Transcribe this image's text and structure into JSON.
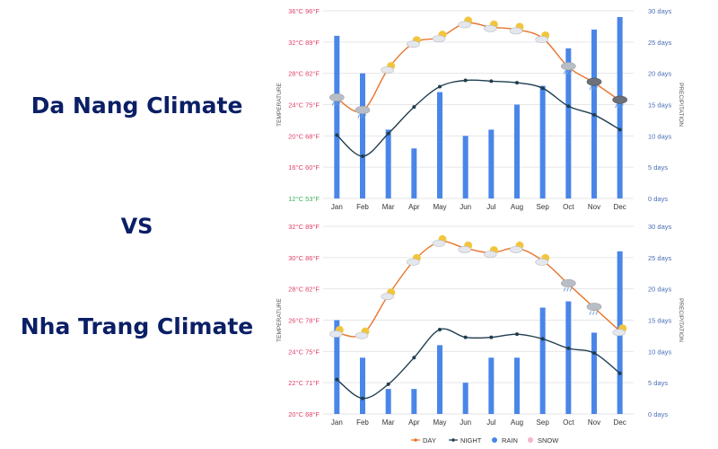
{
  "titles": {
    "left_top": "Da Nang Climate",
    "vs": "VS",
    "left_bottom": "Nha Trang Climate"
  },
  "chart_data": [
    {
      "type": "bar+line",
      "name": "Da Nang Climate",
      "categories": [
        "Jan",
        "Feb",
        "Mar",
        "Apr",
        "May",
        "Jun",
        "Jul",
        "Aug",
        "Sep",
        "Oct",
        "Nov",
        "Dec"
      ],
      "ylabel": "TEMPERATURE",
      "y2label": "PRECIPITATION",
      "ylim": [
        12,
        36
      ],
      "y2lim": [
        0,
        30
      ],
      "y_ticks": [
        "12°C 53°F",
        "16°C 60°F",
        "20°C 68°F",
        "24°C 75°F",
        "28°C 82°F",
        "32°C 89°F",
        "36°C 96°F"
      ],
      "y_tick_values": [
        12,
        16,
        20,
        24,
        28,
        32,
        36
      ],
      "y2_ticks": [
        "0 days",
        "5 days",
        "10 days",
        "15 days",
        "20 days",
        "25 days",
        "30 days"
      ],
      "y2_tick_values": [
        0,
        5,
        10,
        15,
        20,
        25,
        30
      ],
      "series": [
        {
          "name": "RAIN",
          "kind": "bar",
          "axis": "y2",
          "color": "#4a86e8",
          "values": [
            26,
            20,
            11,
            8,
            17,
            10,
            11,
            15,
            18,
            24,
            27,
            29
          ]
        },
        {
          "name": "DAY",
          "kind": "line",
          "axis": "y",
          "color": "#e8742a",
          "values": [
            24.8,
            23.2,
            28.6,
            31.9,
            32.6,
            34.4,
            33.9,
            33.6,
            32.5,
            28.8,
            26.8,
            24.5
          ]
        },
        {
          "name": "NIGHT",
          "kind": "line",
          "axis": "y",
          "color": "#1f3d4f",
          "values": [
            20.1,
            17.4,
            20.3,
            23.7,
            26.3,
            27.1,
            27.0,
            26.8,
            26.1,
            23.8,
            22.7,
            20.8
          ]
        }
      ],
      "icons": [
        "cloud-rain-icon",
        "cloud-rain-icon",
        "partly-sunny-icon",
        "partly-sunny-icon",
        "partly-sunny-icon",
        "partly-sunny-icon",
        "partly-sunny-icon",
        "partly-sunny-icon",
        "partly-sunny-icon",
        "cloud-rain-icon",
        "cloud-storm-icon",
        "cloud-storm-icon"
      ]
    },
    {
      "type": "bar+line",
      "name": "Nha Trang Climate",
      "categories": [
        "Jan",
        "Feb",
        "Mar",
        "Apr",
        "May",
        "Jun",
        "Jul",
        "Aug",
        "Sep",
        "Oct",
        "Nov",
        "Dec"
      ],
      "ylabel": "TEMPERATURE",
      "y2label": "PRECIPITATION",
      "ylim": [
        20,
        32
      ],
      "y2lim": [
        0,
        30
      ],
      "y_ticks": [
        "20°C 68°F",
        "22°C 71°F",
        "24°C 75°F",
        "26°C 78°F",
        "28°C 82°F",
        "30°C 86°F",
        "32°C 89°F"
      ],
      "y_tick_values": [
        20,
        22,
        24,
        26,
        28,
        30,
        32
      ],
      "y2_ticks": [
        "0 days",
        "5 days",
        "10 days",
        "15 days",
        "20 days",
        "25 days",
        "30 days"
      ],
      "y2_tick_values": [
        0,
        5,
        10,
        15,
        20,
        25,
        30
      ],
      "series": [
        {
          "name": "RAIN",
          "kind": "bar",
          "axis": "y2",
          "color": "#4a86e8",
          "values": [
            15,
            9,
            4,
            4,
            11,
            5,
            9,
            9,
            17,
            18,
            13,
            26
          ]
        },
        {
          "name": "DAY",
          "kind": "line",
          "axis": "y",
          "color": "#e8742a",
          "values": [
            25.2,
            25.1,
            27.6,
            29.8,
            31.0,
            30.6,
            30.3,
            30.6,
            29.8,
            28.3,
            26.8,
            25.3
          ]
        },
        {
          "name": "NIGHT",
          "kind": "line",
          "axis": "y",
          "color": "#1f3d4f",
          "values": [
            22.2,
            21.0,
            21.9,
            23.6,
            25.4,
            24.9,
            24.9,
            25.1,
            24.8,
            24.2,
            23.9,
            22.6
          ]
        }
      ],
      "icons": [
        "partly-sunny-icon",
        "partly-sunny-icon",
        "partly-sunny-icon",
        "partly-sunny-icon",
        "partly-sunny-icon",
        "partly-sunny-icon",
        "partly-sunny-icon",
        "partly-sunny-icon",
        "partly-sunny-icon",
        "cloud-rain-icon",
        "cloud-rain-icon",
        "partly-sunny-icon"
      ]
    }
  ],
  "legend": [
    {
      "name": "DAY",
      "color": "#e8742a",
      "marker": "line-dot"
    },
    {
      "name": "NIGHT",
      "color": "#1f3d4f",
      "marker": "line-dot"
    },
    {
      "name": "RAIN",
      "color": "#4a86e8",
      "marker": "dot"
    },
    {
      "name": "SNOW",
      "color": "#f4b6c2",
      "marker": "dot"
    }
  ]
}
